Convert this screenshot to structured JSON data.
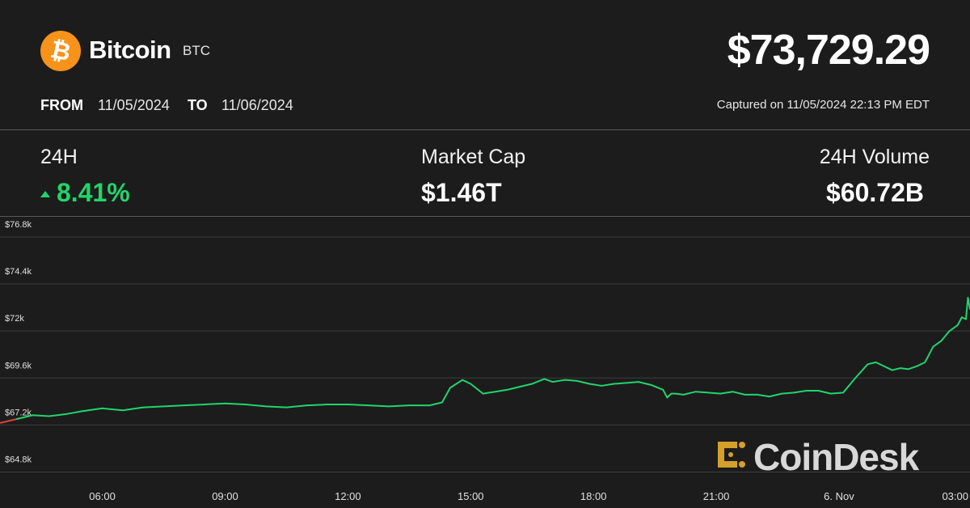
{
  "header": {
    "coin_name": "Bitcoin",
    "coin_symbol": "BTC",
    "price": "$73,729.29",
    "from_label": "FROM",
    "from_date": "11/05/2024",
    "to_label": "TO",
    "to_date": "11/06/2024",
    "captured": "Captured on 11/05/2024 22:13 PM EDT"
  },
  "stats": {
    "change_label": "24H",
    "change_value": "8.41%",
    "market_cap_label": "Market Cap",
    "market_cap_value": "$1.46T",
    "volume_label": "24H Volume",
    "volume_value": "$60.72B"
  },
  "watermark": {
    "text": "CoinDesk",
    "icon": "coindesk-logo-icon"
  },
  "colors": {
    "background": "#1c1c1c",
    "line": "#22d46b",
    "line_start": "#e0403a",
    "positive": "#22d46b",
    "bitcoin_orange": "#f7931a",
    "coindesk_gold": "#d4a02a"
  },
  "chart_data": {
    "type": "line",
    "x_ticks": [
      {
        "label": "06:00",
        "t": 6
      },
      {
        "label": "09:00",
        "t": 9
      },
      {
        "label": "12:00",
        "t": 12
      },
      {
        "label": "15:00",
        "t": 15
      },
      {
        "label": "18:00",
        "t": 18
      },
      {
        "label": "21:00",
        "t": 21
      },
      {
        "label": "6. Nov",
        "t": 24
      },
      {
        "label": "03:00",
        "t": 27
      }
    ],
    "y_ticks": [
      {
        "label": "$64.8k",
        "v": 64800
      },
      {
        "label": "$67.2k",
        "v": 67200
      },
      {
        "label": "$69.6k",
        "v": 69600
      },
      {
        "label": "$72k",
        "v": 72000
      },
      {
        "label": "$74.4k",
        "v": 74400
      },
      {
        "label": "$76.8k",
        "v": 76800
      }
    ],
    "xlim": [
      3.5,
      27.2
    ],
    "ylim": [
      64200,
      77500
    ],
    "grid": true,
    "series": [
      {
        "x": [
          3.5,
          3.9,
          4.3,
          4.7,
          5.1,
          5.5,
          6.0,
          6.5,
          7.0,
          7.5,
          8.0,
          8.5,
          9.0,
          9.5,
          10.0,
          10.5,
          11.0,
          11.5,
          12.0,
          12.5,
          13.0,
          13.5,
          14.0,
          14.3,
          14.5,
          14.8,
          15.0,
          15.3,
          15.6,
          15.9,
          16.2,
          16.5,
          16.8,
          17.0,
          17.3,
          17.6,
          17.9,
          18.2,
          18.5,
          18.8,
          19.1,
          19.4,
          19.7,
          19.8,
          19.9,
          20.0,
          20.2,
          20.5,
          20.8,
          21.1,
          21.4,
          21.7,
          22.0,
          22.3,
          22.6,
          22.9,
          23.2,
          23.5,
          23.8,
          24.1,
          24.4,
          24.7,
          24.9,
          25.1,
          25.3,
          25.5,
          25.7,
          25.9,
          26.1,
          26.3,
          26.5,
          26.7,
          26.9,
          27.0,
          27.1,
          27.15,
          27.2
        ],
        "y": [
          67300,
          67500,
          67700,
          67650,
          67750,
          67900,
          68050,
          67950,
          68100,
          68150,
          68200,
          68250,
          68300,
          68250,
          68150,
          68100,
          68200,
          68250,
          68250,
          68200,
          68150,
          68200,
          68200,
          68350,
          69100,
          69500,
          69300,
          68800,
          68900,
          69000,
          69150,
          69300,
          69550,
          69400,
          69500,
          69450,
          69300,
          69200,
          69300,
          69350,
          69400,
          69250,
          69000,
          68600,
          68800,
          68800,
          68750,
          68900,
          68850,
          68800,
          68900,
          68750,
          68750,
          68650,
          68800,
          68850,
          68950,
          68950,
          68800,
          68850,
          69600,
          70300,
          70400,
          70200,
          70000,
          70100,
          70050,
          70200,
          70400,
          71200,
          71500,
          72000,
          72300,
          72700,
          72600,
          73700,
          73100
        ]
      }
    ]
  }
}
